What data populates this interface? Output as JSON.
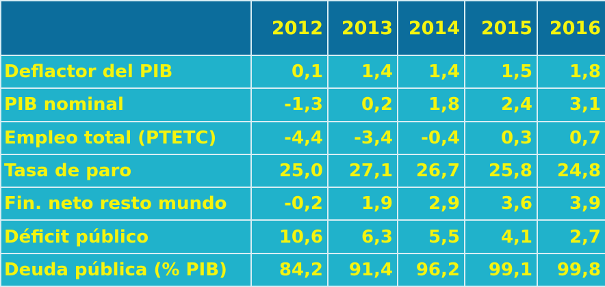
{
  "table": {
    "header": [
      "2012",
      "2013",
      "2014",
      "2015",
      "2016"
    ],
    "rows": [
      {
        "label": "Deflactor del PIB",
        "values": [
          "0,1",
          "1,4",
          "1,4",
          "1,5",
          "1,8"
        ]
      },
      {
        "label": "PIB nominal",
        "values": [
          "-1,3",
          "0,2",
          "1,8",
          "2,4",
          "3,1"
        ]
      },
      {
        "label": "Empleo total (PTETC)",
        "values": [
          "-4,4",
          "-3,4",
          "-0,4",
          "0,3",
          "0,7"
        ]
      },
      {
        "label": "Tasa de paro",
        "values": [
          "25,0",
          "27,1",
          "26,7",
          "25,8",
          "24,8"
        ]
      },
      {
        "label": "Fin. neto resto mundo",
        "values": [
          "-0,2",
          "1,9",
          "2,9",
          "3,6",
          "3,9"
        ]
      },
      {
        "label": "Déficit público",
        "values": [
          "10,6",
          "6,3",
          "5,5",
          "4,1",
          "2,7"
        ]
      },
      {
        "label": "Deuda pública (% PIB)",
        "values": [
          "84,2",
          "91,4",
          "96,2",
          "99,1",
          "99,8"
        ]
      }
    ]
  }
}
